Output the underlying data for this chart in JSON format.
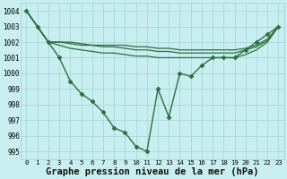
{
  "background_color": "#c8eef0",
  "grid_color": "#a8d8dc",
  "line_color": "#2d6e3e",
  "marker_color": "#2d6e3e",
  "xlabel": "Graphe pression niveau de la mer (hPa)",
  "xlabel_fontsize": 7.5,
  "xlim": [
    -0.5,
    23.5
  ],
  "ylim": [
    994.5,
    1004.5
  ],
  "yticks": [
    995,
    996,
    997,
    998,
    999,
    1000,
    1001,
    1002,
    1003,
    1004
  ],
  "xticks": [
    0,
    1,
    2,
    3,
    4,
    5,
    6,
    7,
    8,
    9,
    10,
    11,
    12,
    13,
    14,
    15,
    16,
    17,
    18,
    19,
    20,
    21,
    22,
    23
  ],
  "series": [
    {
      "x": [
        0,
        1,
        2,
        3,
        4,
        5,
        6,
        7,
        8,
        9,
        10,
        11,
        12,
        13,
        14,
        15,
        16,
        17,
        18,
        19,
        20,
        21,
        22,
        23
      ],
      "y": [
        1004.0,
        1003.0,
        1002.0,
        1001.0,
        999.5,
        998.7,
        998.2,
        997.5,
        996.5,
        996.2,
        995.3,
        995.0,
        999.0,
        997.2,
        1000.0,
        999.8,
        1000.5,
        1001.0,
        1001.0,
        1001.0,
        1001.5,
        1002.0,
        1002.5,
        1003.0
      ],
      "marker": "D",
      "markersize": 2.5,
      "linewidth": 1.0,
      "zorder": 4
    },
    {
      "x": [
        0,
        1,
        2,
        3,
        4,
        5,
        6,
        7,
        8,
        9,
        10,
        11,
        12,
        13,
        14,
        15,
        16,
        17,
        18,
        19,
        20,
        21,
        22,
        23
      ],
      "y": [
        1004.0,
        1003.0,
        1002.0,
        1002.0,
        1002.0,
        1001.9,
        1001.8,
        1001.8,
        1001.8,
        1001.8,
        1001.7,
        1001.7,
        1001.6,
        1001.6,
        1001.5,
        1001.5,
        1001.5,
        1001.5,
        1001.5,
        1001.5,
        1001.6,
        1001.8,
        1002.2,
        1003.0
      ],
      "marker": null,
      "markersize": 0,
      "linewidth": 0.9,
      "zorder": 3
    },
    {
      "x": [
        0,
        1,
        2,
        3,
        4,
        5,
        6,
        7,
        8,
        9,
        10,
        11,
        12,
        13,
        14,
        15,
        16,
        17,
        18,
        19,
        20,
        21,
        22,
        23
      ],
      "y": [
        1004.0,
        1003.0,
        1002.0,
        1002.0,
        1001.9,
        1001.8,
        1001.8,
        1001.7,
        1001.7,
        1001.6,
        1001.5,
        1001.5,
        1001.4,
        1001.4,
        1001.3,
        1001.3,
        1001.3,
        1001.3,
        1001.3,
        1001.3,
        1001.5,
        1001.7,
        1002.1,
        1003.0
      ],
      "marker": null,
      "markersize": 0,
      "linewidth": 0.9,
      "zorder": 3
    },
    {
      "x": [
        0,
        1,
        2,
        3,
        4,
        5,
        6,
        7,
        8,
        9,
        10,
        11,
        12,
        13,
        14,
        15,
        16,
        17,
        18,
        19,
        20,
        21,
        22,
        23
      ],
      "y": [
        1004.0,
        1003.0,
        1002.0,
        1001.8,
        1001.6,
        1001.5,
        1001.4,
        1001.3,
        1001.3,
        1001.2,
        1001.1,
        1001.1,
        1001.0,
        1001.0,
        1001.0,
        1001.0,
        1001.0,
        1001.0,
        1001.0,
        1001.0,
        1001.2,
        1001.5,
        1002.0,
        1003.0
      ],
      "marker": null,
      "markersize": 0,
      "linewidth": 0.9,
      "zorder": 3
    }
  ]
}
